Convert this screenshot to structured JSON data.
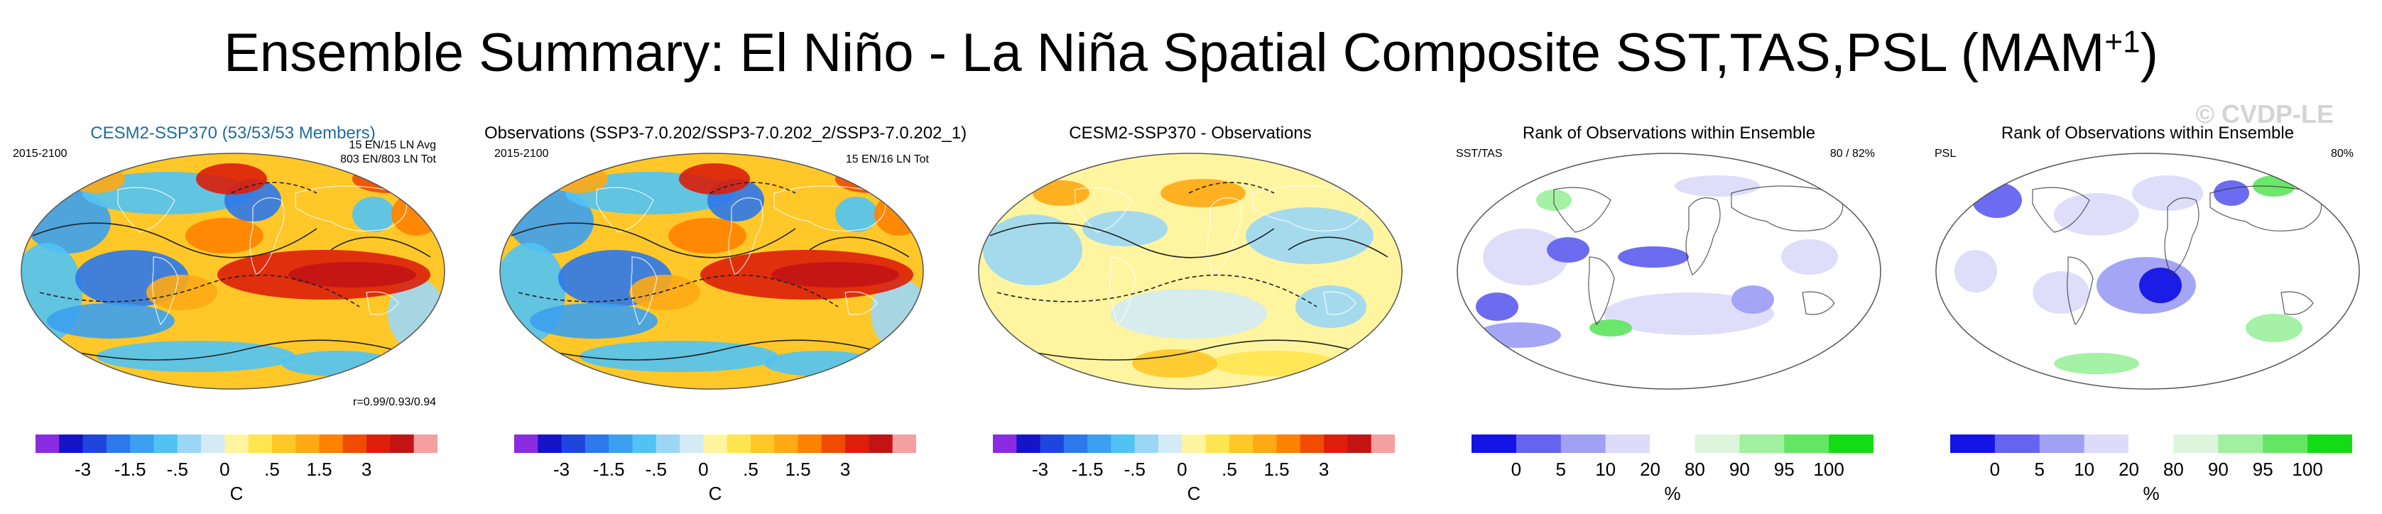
{
  "title": {
    "text": "Ensemble Summary: El Niño - La Niña Spatial Composite SST,TAS,PSL (MAM",
    "superscript": "+1",
    "suffix": ")"
  },
  "watermark": "© CVDP-LE",
  "panels": [
    {
      "title": "CESM2-SSP370 (53/53/53 Members)",
      "top_left": "2015-2100",
      "top_right_1": "15 EN/15 LN Avg",
      "top_right_2": "803 EN/803 LN Tot",
      "bottom_right": "r=0.99/0.93/0.94",
      "colorbar_labels": [
        "-3",
        "-1.5",
        "-.5",
        "0",
        ".5",
        "1.5",
        "3"
      ],
      "unit": "C"
    },
    {
      "title": "Observations (SSP3-7.0.202/SSP3-7.0.202_2/SSP3-7.0.202_1)",
      "top_left": "2015-2100",
      "top_right_1": "15 EN/16 LN Tot",
      "colorbar_labels": [
        "-3",
        "-1.5",
        "-.5",
        "0",
        ".5",
        "1.5",
        "3"
      ],
      "unit": "C"
    },
    {
      "title": "CESM2-SSP370 - Observations",
      "colorbar_labels": [
        "-3",
        "-1.5",
        "-.5",
        "0",
        ".5",
        "1.5",
        "3"
      ],
      "unit": "C"
    },
    {
      "title": "Rank of Observations within Ensemble",
      "top_left": "SST/TAS",
      "top_right_1": "80 /  82%",
      "colorbar_labels": [
        "0",
        "5",
        "10",
        "20",
        "80",
        "90",
        "95",
        "100"
      ],
      "unit": "%"
    },
    {
      "title": "Rank of Observations within Ensemble",
      "top_left": "PSL",
      "top_right_1": "80%",
      "colorbar_labels": [
        "0",
        "5",
        "10",
        "20",
        "80",
        "90",
        "95",
        "100"
      ],
      "unit": "%"
    }
  ],
  "colors": {
    "anomaly_scale": [
      "#8a2be2",
      "#1414c8",
      "#1e46dc",
      "#2d78eb",
      "#3ca0f0",
      "#50c3f5",
      "#9bd7f5",
      "#d2ebf5",
      "#fff5a0",
      "#ffe650",
      "#ffc828",
      "#ffaa14",
      "#ff8200",
      "#f04b00",
      "#dc1e0a",
      "#c31414",
      "#f5a0a0"
    ],
    "rank_scale": [
      "#1414e6",
      "#6464f0",
      "#a0a0f5",
      "#dcdcfa",
      "#ffffff",
      "#dcf5dc",
      "#a0f0a0",
      "#64e664",
      "#14dc14"
    ],
    "panel1_title": "#1f6b9e"
  }
}
